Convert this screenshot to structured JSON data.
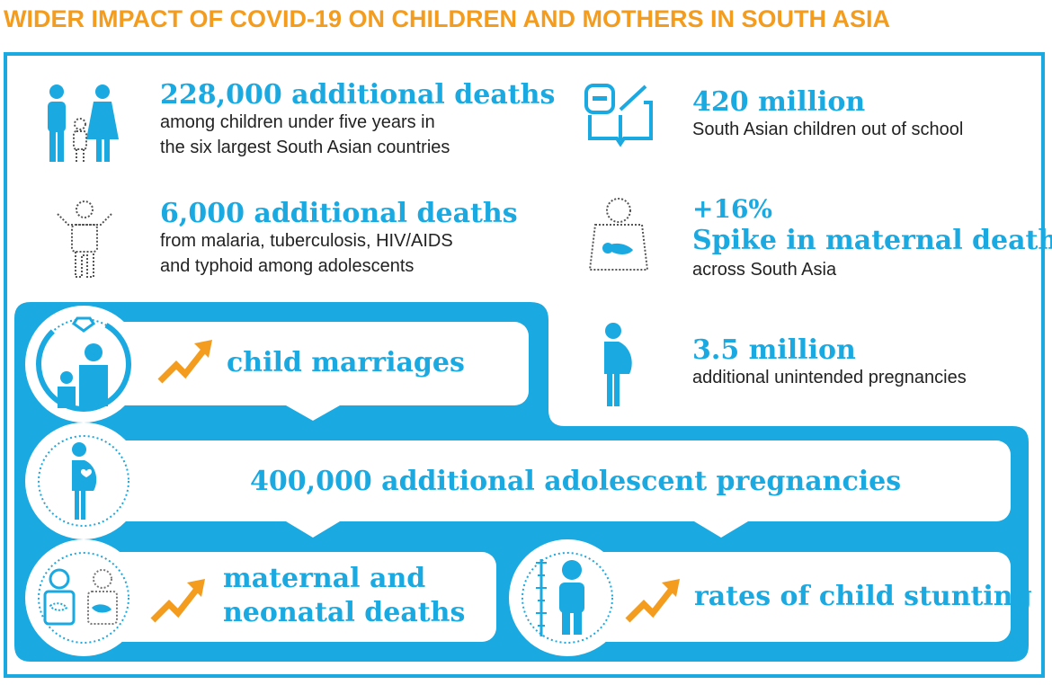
{
  "title": "WIDER IMPACT OF COVID-19 ON CHILDREN AND MOTHERS IN SOUTH ASIA",
  "stats": {
    "child_deaths": {
      "headline": "228,000 additional deaths",
      "line1": "among children under five years in",
      "line2": "the six largest South Asian countries",
      "icon": "family-icon"
    },
    "out_of_school": {
      "headline": "420 million",
      "line1": "South Asian children out of school",
      "icon": "book-icon"
    },
    "adolescent_deaths": {
      "headline": "6,000 additional deaths",
      "line1": "from malaria, tuberculosis, HIV/AIDS",
      "line2": "and typhoid among adolescents",
      "icon": "adolescent-icon"
    },
    "maternal_deaths": {
      "prefix": "+16%",
      "headline": "Spike in maternal deaths",
      "line1": "across South Asia",
      "icon": "mother-baby-icon"
    },
    "unintended_pregnancies": {
      "headline": "3.5 million",
      "line1": "additional unintended pregnancies",
      "icon": "pregnant-woman-icon"
    }
  },
  "flow": {
    "child_marriages": {
      "label": "child marriages",
      "icon": "marriage-icon"
    },
    "adolescent_pregnancies": {
      "label": "400,000 additional adolescent pregnancies",
      "icon": "pregnant-girl-icon"
    },
    "maternal_neonatal": {
      "line1": "maternal and",
      "line2": "neonatal deaths",
      "icon": "mother-newborn-icon"
    },
    "stunting": {
      "label": "rates of child stunting",
      "icon": "child-height-icon"
    }
  },
  "colors": {
    "accent": "#1aa9e1",
    "title": "#f39c1e",
    "arrow": "#f39c1e"
  }
}
